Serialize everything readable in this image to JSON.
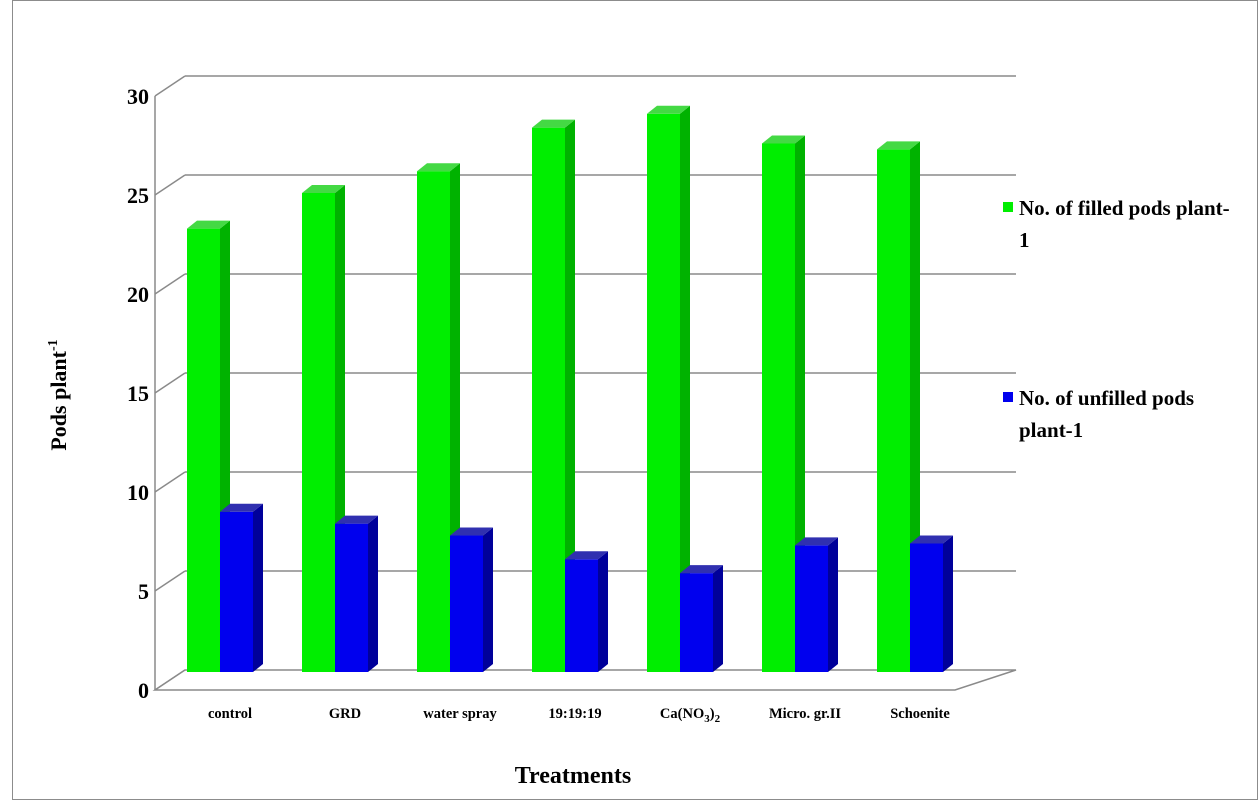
{
  "chart_data": {
    "type": "bar",
    "ylabel": "Pods plant",
    "ylabel_superscript": "-1",
    "xlabel": "Treatments",
    "ylim": [
      0,
      30
    ],
    "yticks": [
      0,
      5,
      10,
      15,
      20,
      25,
      30
    ],
    "grid": true,
    "style": "3d-clustered-column",
    "legend_position": "right",
    "categories": [
      {
        "text": "control"
      },
      {
        "text": "GRD"
      },
      {
        "text": "water spray"
      },
      {
        "text": "19:19:19"
      },
      {
        "text": "Ca(NO",
        "sub1": "3",
        "mid": ")",
        "sub2": "2"
      },
      {
        "text": "Micro. gr.II"
      },
      {
        "text": "Schoenite"
      }
    ],
    "series": [
      {
        "name": "No. of filled pods plant-1",
        "color": "#00ee00",
        "side": "#00b200",
        "top": "#44d944",
        "values": [
          23.1,
          24.9,
          26.0,
          28.2,
          28.9,
          27.4,
          27.1
        ]
      },
      {
        "name": "No. of unfilled pods plant-1",
        "color": "#0000ee",
        "side": "#00009a",
        "top": "#3030b0",
        "values": [
          8.8,
          8.2,
          7.6,
          6.4,
          5.7,
          7.1,
          7.2
        ]
      }
    ]
  }
}
